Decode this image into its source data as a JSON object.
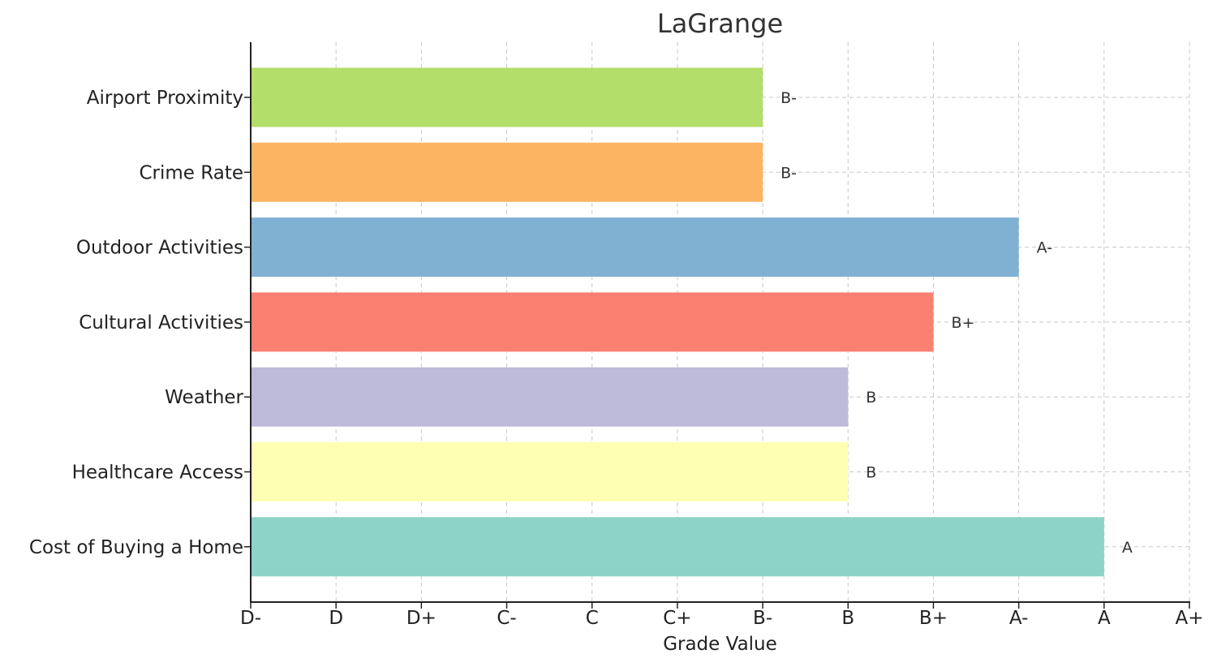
{
  "chart_data": {
    "type": "bar",
    "orientation": "horizontal",
    "title": "LaGrange",
    "xlabel": "Grade Value",
    "ylabel": "",
    "grade_scale": [
      "D-",
      "D",
      "D+",
      "C-",
      "C",
      "C+",
      "B-",
      "B",
      "B+",
      "A-",
      "A",
      "A+"
    ],
    "xlim": [
      0,
      11
    ],
    "categories": [
      "Airport Proximity",
      "Crime Rate",
      "Outdoor Activities",
      "Cultural Activities",
      "Weather",
      "Healthcare Access",
      "Cost of Buying a Home"
    ],
    "values": [
      6,
      6,
      9,
      8,
      7,
      7,
      10
    ],
    "value_labels": [
      "B-",
      "B-",
      "A-",
      "B+",
      "B",
      "B",
      "A"
    ],
    "colors": [
      "#b3de69",
      "#fdb462",
      "#80b1d3",
      "#fb8072",
      "#bebada",
      "#ffffb3",
      "#8dd3c7"
    ],
    "grid": true,
    "legend": "none"
  }
}
